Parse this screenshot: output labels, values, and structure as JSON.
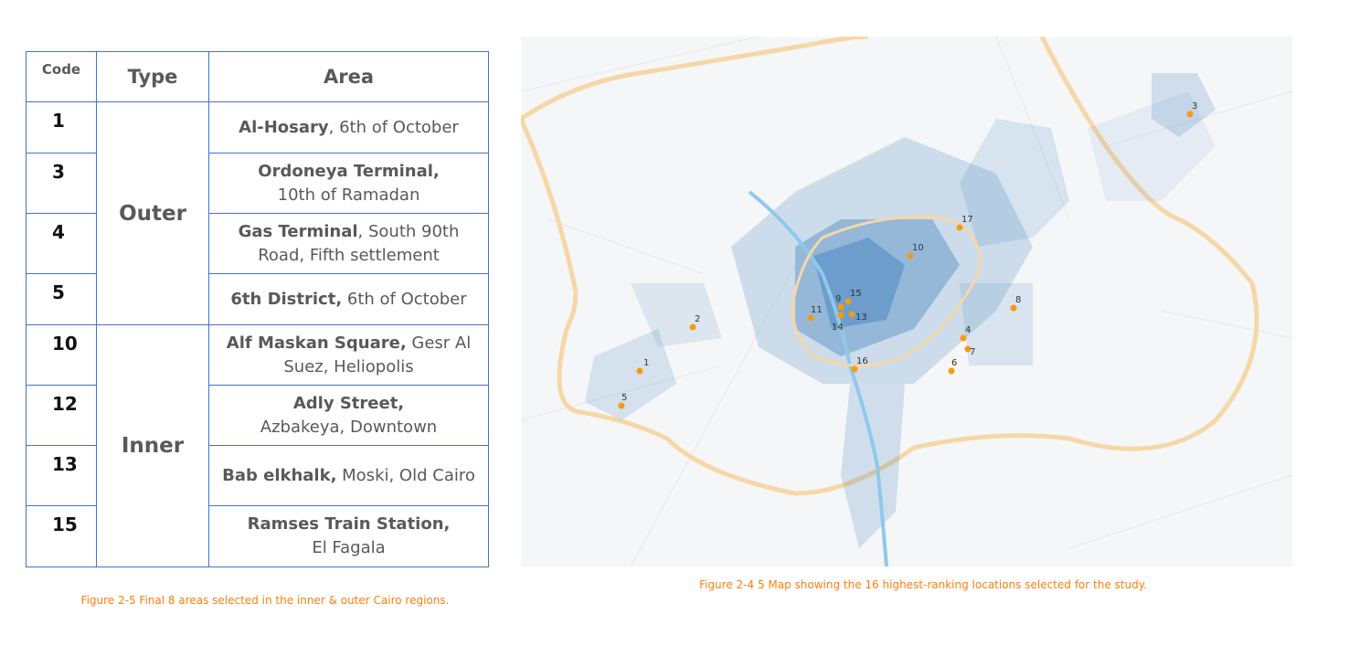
{
  "table": {
    "headers": {
      "code": "Code",
      "type": "Type",
      "area": "Area"
    },
    "groups": {
      "outer": "Outer",
      "inner": "Inner"
    },
    "rows": [
      {
        "code": "1",
        "area_bold": "Al-Hosary",
        "area_rest": ", 6th of October"
      },
      {
        "code": "3",
        "area_bold": "Ordoneya Terminal,",
        "area_rest": "10th of Ramadan"
      },
      {
        "code": "4",
        "area_bold": "Gas Terminal",
        "area_rest": ", South 90th Road, Fifth settlement"
      },
      {
        "code": "5",
        "area_bold": "6th District,",
        "area_rest": " 6th of October"
      },
      {
        "code": "10",
        "area_bold": "Alf Maskan Square,",
        "area_rest": " Gesr Al Suez, Heliopolis"
      },
      {
        "code": "12",
        "area_bold": "Adly Street,",
        "area_rest": "Azbakeya, Downtown"
      },
      {
        "code": "13",
        "area_bold": "Bab elkhalk,",
        "area_rest": " Moski, Old Cairo"
      },
      {
        "code": "15",
        "area_bold": "Ramses Train Station,",
        "area_rest": "El Fagala"
      }
    ],
    "caption": "Figure 2-5 Final 8 areas selected in the inner & outer Cairo regions."
  },
  "map": {
    "caption": "Figure 2-4 5 Map showing the 16 highest-ranking locations selected for the study.",
    "locations": [
      "1",
      "2",
      "3",
      "4",
      "5",
      "6",
      "7",
      "8",
      "9",
      "10",
      "11",
      "13",
      "14",
      "15",
      "16",
      "17"
    ],
    "colors": {
      "marker": "#f39c12",
      "ring_road": "#f5d7a8",
      "density": "#2f76b9",
      "nile": "#8ec9ec"
    }
  }
}
